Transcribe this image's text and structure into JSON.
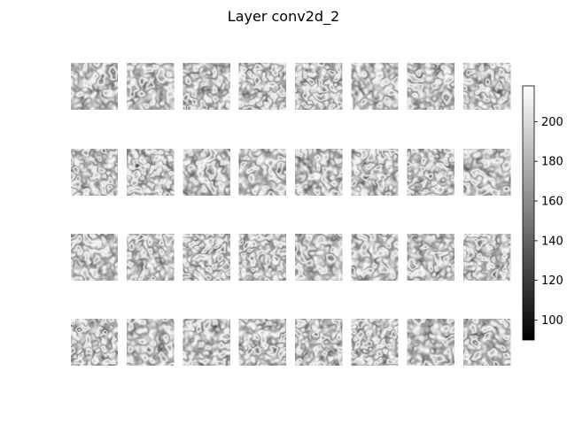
{
  "chart_data": {
    "type": "heatmap",
    "title": "Layer conv2d_2",
    "layer": "conv2d_2",
    "grid": {
      "rows": 4,
      "cols": 8
    },
    "colormap": "gray",
    "colorbar": {
      "vmin": 90,
      "vmax": 218,
      "ticks": [
        100,
        120,
        140,
        160,
        180,
        200
      ],
      "placement": "right"
    },
    "feature_maps": {
      "count": 32,
      "pattern": "labyrinthine stripe texture",
      "value_range": [
        90,
        218
      ]
    }
  }
}
